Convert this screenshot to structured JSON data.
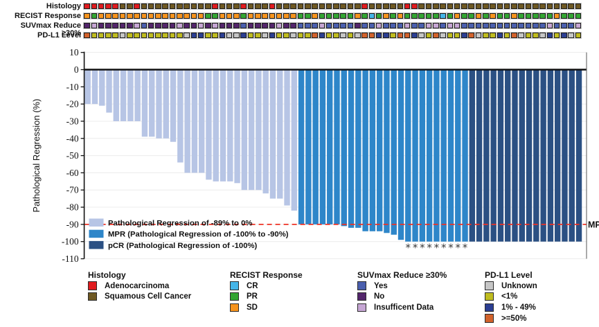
{
  "tracks": {
    "rows": [
      {
        "label": "Histology",
        "key": "histology",
        "values": [
          "A",
          "A",
          "A",
          "A",
          "A",
          "S",
          "S",
          "A",
          "S",
          "S",
          "S",
          "S",
          "S",
          "S",
          "S",
          "S",
          "S",
          "S",
          "A",
          "S",
          "S",
          "S",
          "A",
          "S",
          "S",
          "S",
          "A",
          "S",
          "S",
          "S",
          "S",
          "S",
          "S",
          "S",
          "S",
          "S",
          "S",
          "S",
          "S",
          "A",
          "S",
          "S",
          "S",
          "S",
          "S",
          "A",
          "A",
          "S",
          "S",
          "S",
          "S",
          "S",
          "S",
          "S",
          "S",
          "S",
          "S",
          "S",
          "S",
          "S",
          "S",
          "S",
          "S",
          "S",
          "S",
          "S",
          "S",
          "S",
          "S",
          "S"
        ],
        "palette": {
          "A": "#e01b1f",
          "S": "#6e5822"
        },
        "code_names": {
          "A": "Adenocarcinoma",
          "S": "Squamous Cell Cancer"
        }
      },
      {
        "label": "RECIST Response",
        "key": "recist",
        "values": [
          "O",
          "G",
          "O",
          "O",
          "O",
          "O",
          "O",
          "O",
          "O",
          "O",
          "O",
          "O",
          "O",
          "O",
          "O",
          "O",
          "O",
          "G",
          "G",
          "O",
          "O",
          "O",
          "G",
          "O",
          "O",
          "O",
          "O",
          "O",
          "O",
          "O",
          "G",
          "G",
          "O",
          "G",
          "G",
          "G",
          "G",
          "G",
          "O",
          "G",
          "C",
          "G",
          "O",
          "G",
          "O",
          "G",
          "G",
          "G",
          "G",
          "G",
          "C",
          "G",
          "O",
          "G",
          "G",
          "O",
          "G",
          "O",
          "G",
          "G",
          "O",
          "G",
          "G",
          "G",
          "G",
          "G",
          "O",
          "G",
          "G",
          "G"
        ],
        "palette": {
          "C": "#45b5e8",
          "G": "#33a532",
          "O": "#f7941e"
        },
        "code_names": {
          "C": "CR",
          "G": "PR",
          "O": "SD"
        }
      },
      {
        "label": "SUVmax Reduce ≥30%",
        "key": "suvmax",
        "values": [
          "N",
          "I",
          "N",
          "N",
          "N",
          "N",
          "N",
          "I",
          "Y",
          "N",
          "N",
          "N",
          "N",
          "I",
          "N",
          "N",
          "I",
          "N",
          "I",
          "N",
          "N",
          "N",
          "Y",
          "N",
          "N",
          "N",
          "N",
          "I",
          "N",
          "N",
          "Y",
          "Y",
          "Y",
          "I",
          "Y",
          "Y",
          "Y",
          "Y",
          "N",
          "Y",
          "Y",
          "I",
          "Y",
          "Y",
          "Y",
          "I",
          "Y",
          "Y",
          "I",
          "I",
          "Y",
          "I",
          "I",
          "Y",
          "Y",
          "Y",
          "Y",
          "Y",
          "Y",
          "Y",
          "Y",
          "Y",
          "Y",
          "Y",
          "Y",
          "I",
          "Y",
          "Y",
          "Y",
          "I"
        ],
        "palette": {
          "Y": "#4a5fae",
          "N": "#53256b",
          "I": "#c6a6d4"
        },
        "code_names": {
          "Y": "Yes",
          "N": "No",
          "I": "Insufficent Data"
        }
      },
      {
        "label": "PD-L1 Level",
        "key": "pdl1",
        "values": [
          "H",
          "L",
          "L",
          "L",
          "L",
          "U",
          "L",
          "L",
          "L",
          "L",
          "L",
          "L",
          "L",
          "L",
          "U",
          "M",
          "M",
          "L",
          "L",
          "M",
          "U",
          "U",
          "M",
          "L",
          "L",
          "U",
          "M",
          "L",
          "L",
          "U",
          "L",
          "L",
          "H",
          "M",
          "L",
          "L",
          "U",
          "L",
          "U",
          "H",
          "H",
          "M",
          "M",
          "L",
          "H",
          "H",
          "M",
          "U",
          "L",
          "H",
          "U",
          "L",
          "L",
          "M",
          "H",
          "U",
          "L",
          "L",
          "M",
          "L",
          "H",
          "U",
          "L",
          "L",
          "U",
          "M",
          "L",
          "M",
          "U",
          "L"
        ],
        "palette": {
          "U": "#c6c6c6",
          "L": "#bfbc1f",
          "M": "#2b3e92",
          "H": "#d2622b"
        },
        "code_names": {
          "U": "Unknown",
          "L": "<1%",
          "M": "1% - 49%",
          "H": ">=50%"
        }
      }
    ]
  },
  "chart_data": {
    "type": "bar",
    "title": "",
    "xlabel": "",
    "ylabel": "Pathological Regression (%)",
    "ylim": [
      -110,
      10
    ],
    "ytick_step": 10,
    "grid": true,
    "n_patients": 70,
    "values": [
      -20,
      -20,
      -21,
      -25,
      -30,
      -30,
      -30,
      -30,
      -39,
      -39,
      -40,
      -40,
      -42,
      -54,
      -60,
      -60,
      -60,
      -64,
      -65,
      -65,
      -65,
      -66,
      -70,
      -70,
      -70,
      -72,
      -75,
      -75,
      -79,
      -82,
      -90,
      -90,
      -90,
      -90,
      -90,
      -90,
      -91,
      -92,
      -92,
      -94,
      -94,
      -94,
      -95,
      -96,
      -99,
      -100,
      -100,
      -100,
      -100,
      -100,
      -100,
      -100,
      -100,
      -100,
      -100,
      -100,
      -100,
      -100,
      -100,
      -100,
      -100,
      -100,
      -100,
      -100,
      -100,
      -100,
      -100,
      -100,
      -100,
      -100
    ],
    "groups": [
      "reg",
      "reg",
      "reg",
      "reg",
      "reg",
      "reg",
      "reg",
      "reg",
      "reg",
      "reg",
      "reg",
      "reg",
      "reg",
      "reg",
      "reg",
      "reg",
      "reg",
      "reg",
      "reg",
      "reg",
      "reg",
      "reg",
      "reg",
      "reg",
      "reg",
      "reg",
      "reg",
      "reg",
      "reg",
      "reg",
      "mpr",
      "mpr",
      "mpr",
      "mpr",
      "mpr",
      "mpr",
      "mpr",
      "mpr",
      "mpr",
      "mpr",
      "mpr",
      "mpr",
      "mpr",
      "mpr",
      "mpr",
      "mpr",
      "mpr",
      "mpr",
      "mpr",
      "mpr",
      "mpr",
      "mpr",
      "mpr",
      "mpr",
      "pcr",
      "pcr",
      "pcr",
      "pcr",
      "pcr",
      "pcr",
      "pcr",
      "pcr",
      "pcr",
      "pcr",
      "pcr",
      "pcr",
      "pcr",
      "pcr",
      "pcr",
      "pcr"
    ],
    "group_colors": {
      "reg": "#b7c5e5",
      "mpr": "#2e86c9",
      "pcr": "#2b5083"
    },
    "asterisk_rule": "MPR bars reaching -100%",
    "asterisk_symbol": "*",
    "threshold_line": {
      "value": -90,
      "label": "MPR",
      "color": "#ee3124",
      "style": "dashed"
    },
    "legend": [
      {
        "label": "Pathological Regression of -89% to 0%",
        "color": "#b7c5e5"
      },
      {
        "label": "MPR (Pathological Regression of -100% to -90%)",
        "color": "#2e86c9"
      },
      {
        "label": "pCR (Pathological Regression of -100%)",
        "color": "#2b5083"
      }
    ],
    "legend_position": "bottom-left-inside"
  },
  "legends_bottom": [
    {
      "title": "Histology",
      "items": [
        {
          "label": "Adenocarcinoma",
          "color": "#e01b1f"
        },
        {
          "label": "Squamous Cell Cancer",
          "color": "#6e5822"
        }
      ]
    },
    {
      "title": "RECIST Response",
      "items": [
        {
          "label": "CR",
          "color": "#45b5e8"
        },
        {
          "label": "PR",
          "color": "#33a532"
        },
        {
          "label": "SD",
          "color": "#f7941e"
        }
      ]
    },
    {
      "title": "SUVmax Reduce ≥30%",
      "items": [
        {
          "label": "Yes",
          "color": "#4a5fae"
        },
        {
          "label": "No",
          "color": "#53256b"
        },
        {
          "label": "Insufficent Data",
          "color": "#c6a6d4"
        }
      ]
    },
    {
      "title": "PD-L1 Level",
      "items": [
        {
          "label": "Unknown",
          "color": "#c6c6c6"
        },
        {
          "label": "<1%",
          "color": "#bfbc1f"
        },
        {
          "label": "1% - 49%",
          "color": "#2b3e92"
        },
        {
          "label": ">=50%",
          "color": "#d2622b"
        }
      ]
    }
  ]
}
